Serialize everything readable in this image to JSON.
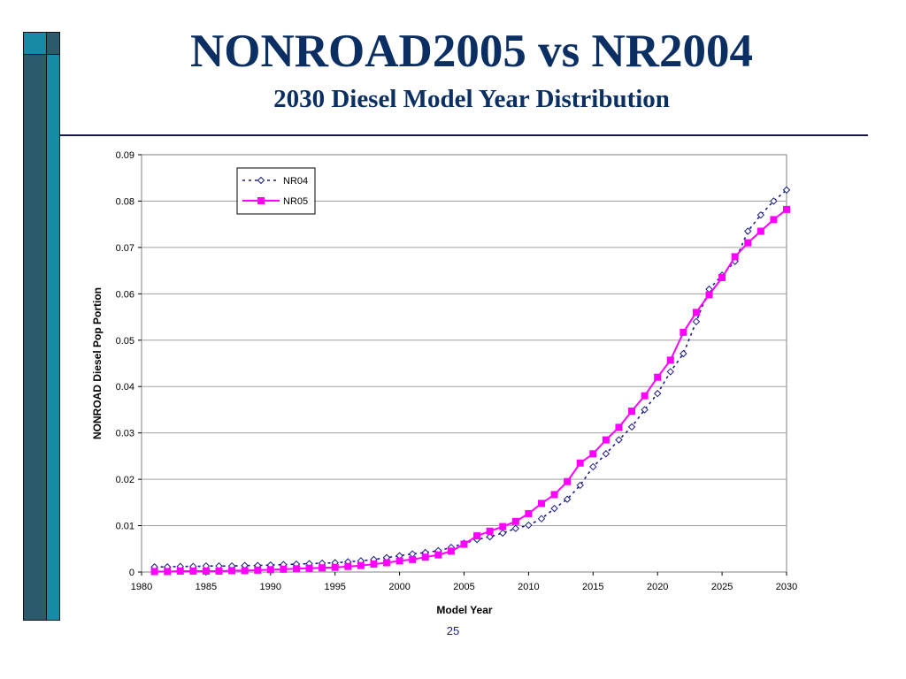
{
  "slide": {
    "title": "NONROAD2005 vs NR2004",
    "subtitle": "2030 Diesel Model Year Distribution",
    "page_number": "25",
    "colors": {
      "title": "#0b2f63",
      "sidebar_dark": "#2a5a6c",
      "sidebar_teal": "#178aa6",
      "nr04": "#1a1a8c",
      "nr05": "#ff00ff"
    }
  },
  "chart_data": {
    "type": "line",
    "xlabel": "Model Year",
    "ylabel": "NONROAD Diesel Pop Portion",
    "xlim": [
      1980,
      2030
    ],
    "ylim": [
      0,
      0.09
    ],
    "xticks": [
      1980,
      1985,
      1990,
      1995,
      2000,
      2005,
      2010,
      2015,
      2020,
      2025,
      2030
    ],
    "yticks": [
      0,
      0.01,
      0.02,
      0.03,
      0.04,
      0.05,
      0.06,
      0.07,
      0.08,
      0.09
    ],
    "ytick_labels": [
      "0",
      "0.01",
      "0.02",
      "0.03",
      "0.04",
      "0.05",
      "0.06",
      "0.07",
      "0.08",
      "0.09"
    ],
    "grid": "horizontal",
    "legend_position": "top-left",
    "x": [
      1981,
      1982,
      1983,
      1984,
      1985,
      1986,
      1987,
      1988,
      1989,
      1990,
      1991,
      1992,
      1993,
      1994,
      1995,
      1996,
      1997,
      1998,
      1999,
      2000,
      2001,
      2002,
      2003,
      2004,
      2005,
      2006,
      2007,
      2008,
      2009,
      2010,
      2011,
      2012,
      2013,
      2014,
      2015,
      2016,
      2017,
      2018,
      2019,
      2020,
      2021,
      2022,
      2023,
      2024,
      2025,
      2026,
      2027,
      2028,
      2029,
      2030
    ],
    "series": [
      {
        "name": "NR04",
        "style": "dashed-diamond",
        "values": [
          0.0011,
          0.0011,
          0.0012,
          0.0012,
          0.0013,
          0.0013,
          0.0013,
          0.0014,
          0.0014,
          0.0015,
          0.0016,
          0.0017,
          0.0018,
          0.0019,
          0.002,
          0.0022,
          0.0024,
          0.0027,
          0.0031,
          0.0035,
          0.0039,
          0.0042,
          0.0046,
          0.0053,
          0.0062,
          0.007,
          0.0076,
          0.0084,
          0.0094,
          0.0101,
          0.0115,
          0.0137,
          0.0157,
          0.0187,
          0.0227,
          0.0255,
          0.0285,
          0.0313,
          0.035,
          0.0385,
          0.0432,
          0.0471,
          0.054,
          0.061,
          0.064,
          0.067,
          0.0735,
          0.077,
          0.08,
          0.0824
        ]
      },
      {
        "name": "NR05",
        "style": "solid-square",
        "values": [
          0.0001,
          0.0001,
          0.0002,
          0.0002,
          0.0002,
          0.0002,
          0.0003,
          0.0003,
          0.0004,
          0.0005,
          0.0006,
          0.0007,
          0.0008,
          0.0009,
          0.001,
          0.0012,
          0.0014,
          0.0017,
          0.002,
          0.0024,
          0.0027,
          0.0032,
          0.0037,
          0.0045,
          0.006,
          0.0078,
          0.0088,
          0.0098,
          0.0109,
          0.0126,
          0.0148,
          0.0167,
          0.0195,
          0.0235,
          0.0255,
          0.0285,
          0.0312,
          0.0347,
          0.038,
          0.042,
          0.0457,
          0.0517,
          0.056,
          0.0598,
          0.0635,
          0.068,
          0.071,
          0.0735,
          0.076,
          0.0782
        ]
      }
    ]
  }
}
